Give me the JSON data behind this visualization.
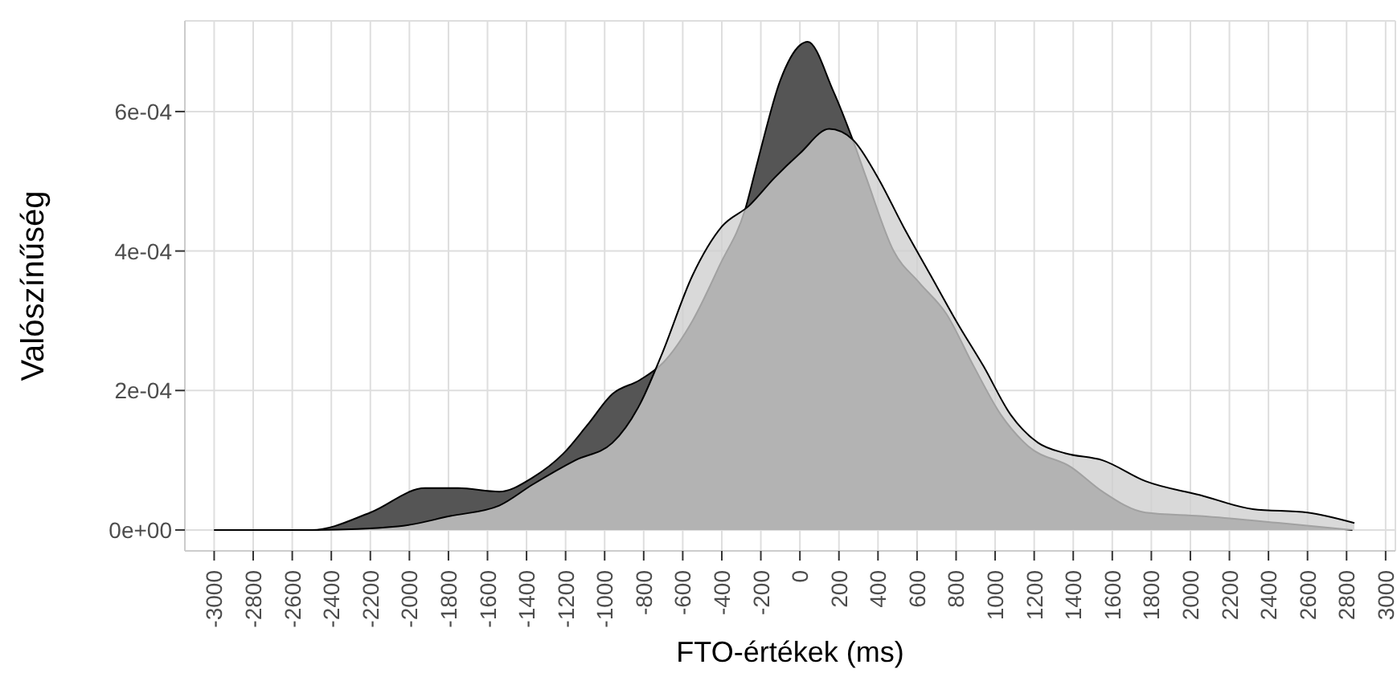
{
  "chart_data": {
    "type": "area",
    "xlabel": "FTO-értékek (ms)",
    "ylabel": "Valószínűség",
    "xlim": [
      -3150,
      3050
    ],
    "ylim": [
      -3e-05,
      0.00073
    ],
    "xticks": [
      -3000,
      -2800,
      -2600,
      -2400,
      -2200,
      -2000,
      -1800,
      -1600,
      -1400,
      -1200,
      -1000,
      -800,
      -600,
      -400,
      -200,
      0,
      200,
      400,
      600,
      800,
      1000,
      1200,
      1400,
      1600,
      1800,
      2000,
      2200,
      2400,
      2600,
      2800,
      3000
    ],
    "yticks": [
      {
        "value": 0,
        "label": "0e+00"
      },
      {
        "value": 0.0002,
        "label": "2e-04"
      },
      {
        "value": 0.0004,
        "label": "4e-04"
      },
      {
        "value": 0.0006,
        "label": "6e-04"
      }
    ],
    "grid": true,
    "series": [
      {
        "color": "#555555",
        "x": [
          -3000,
          -2500,
          -2200,
          -1920,
          -1750,
          -1540,
          -1370,
          -1210,
          -1090,
          -960,
          -820,
          -700,
          -550,
          -410,
          -280,
          -215,
          -100,
          0,
          40,
          170,
          270,
          340,
          480,
          610,
          750,
          890,
          1030,
          1170,
          1390,
          1550,
          1770,
          2050,
          2460,
          2830
        ],
        "values": [
          0,
          0,
          2.5e-05,
          6e-05,
          6e-05,
          5.5e-05,
          7.5e-05,
          0.00011,
          0.00015,
          0.000195,
          0.000215,
          0.00024,
          0.0003,
          0.00038,
          0.00046,
          0.00053,
          0.000645,
          0.000695,
          0.0007,
          0.00063,
          0.00056,
          0.000505,
          0.0004,
          0.000355,
          0.00031,
          0.000235,
          0.000165,
          0.00012,
          9e-05,
          5.5e-05,
          2.5e-05,
          2e-05,
          1e-05,
          0
        ]
      },
      {
        "color": "#cecece",
        "x": [
          -3000,
          -2470,
          -2060,
          -1790,
          -1540,
          -1370,
          -1150,
          -960,
          -820,
          -710,
          -550,
          -400,
          -260,
          -130,
          0,
          150,
          270,
          400,
          530,
          670,
          810,
          940,
          1080,
          1220,
          1360,
          1550,
          1770,
          2050,
          2320,
          2600,
          2840
        ],
        "values": [
          0,
          0,
          5e-06,
          2e-05,
          3.5e-05,
          6.5e-05,
          0.0001,
          0.000125,
          0.00018,
          0.00025,
          0.000365,
          0.000435,
          0.000465,
          0.000505,
          0.00054,
          0.000575,
          0.00056,
          0.000505,
          0.000435,
          0.000365,
          0.000295,
          0.000235,
          0.000165,
          0.000125,
          0.00011,
          0.0001,
          7e-05,
          5e-05,
          3e-05,
          2.5e-05,
          1e-05
        ]
      }
    ]
  }
}
